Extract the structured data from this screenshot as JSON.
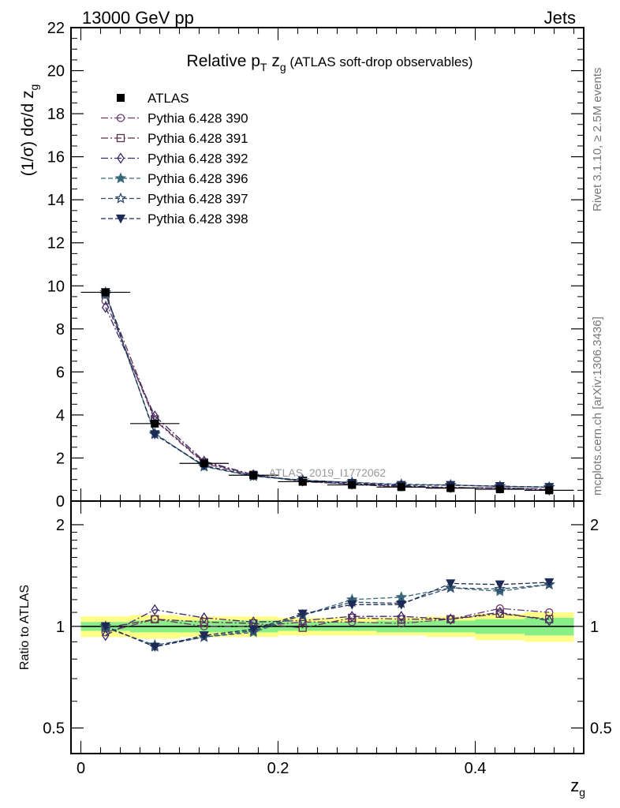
{
  "header": {
    "left": "13000 GeV pp",
    "right": "Jets"
  },
  "side_text": {
    "rivet": "Rivet 3.1.10, ≥ 2.5M events",
    "mcplots": "mcplots.cern.ch [arXiv:1306.3436]"
  },
  "chart_data": [
    {
      "type": "line",
      "title_parts": {
        "main": "Relative p",
        "sub": "T",
        "mid": " z",
        "sub2": "g",
        "tail": " (ATLAS soft-drop observables)"
      },
      "ylabel_parts": {
        "main": "(1/σ) dσ/d z",
        "sub": "g"
      },
      "watermark": "ATLAS_2019_I1772062",
      "xlim": [
        -0.01,
        0.51
      ],
      "ylim": [
        0,
        22
      ],
      "yticks": [
        0,
        2,
        4,
        6,
        8,
        10,
        12,
        14,
        16,
        18,
        20,
        22
      ],
      "ytick_labels": [
        "0",
        "2",
        "4",
        "6",
        "8",
        "10",
        "12",
        "14",
        "16",
        "18",
        "20",
        "22"
      ],
      "x": [
        0.025,
        0.075,
        0.125,
        0.175,
        0.225,
        0.275,
        0.325,
        0.375,
        0.425,
        0.475
      ],
      "data": {
        "name": "ATLAS",
        "values": [
          9.7,
          3.6,
          1.75,
          1.2,
          0.9,
          0.75,
          0.65,
          0.6,
          0.55,
          0.5
        ]
      },
      "series": [
        {
          "name": "Pythia 6.428 390",
          "color": "#6b3a6b",
          "marker": "circle-open",
          "dash": "dashdot",
          "values": [
            9.3,
            3.75,
            1.75,
            1.2,
            0.93,
            0.77,
            0.66,
            0.62,
            0.62,
            0.55
          ]
        },
        {
          "name": "Pythia 6.428 391",
          "color": "#5b2f4a",
          "marker": "square-open",
          "dash": "dashdot",
          "values": [
            9.6,
            3.8,
            1.8,
            1.22,
            0.9,
            0.8,
            0.68,
            0.63,
            0.6,
            0.53
          ]
        },
        {
          "name": "Pythia 6.428 392",
          "color": "#3d2a6b",
          "marker": "diamond-open",
          "dash": "dashdot",
          "values": [
            9.0,
            3.95,
            1.85,
            1.22,
            0.93,
            0.79,
            0.7,
            0.63,
            0.6,
            0.52
          ]
        },
        {
          "name": "Pythia 6.428 396",
          "color": "#3a6a7a",
          "marker": "star-filled",
          "dash": "dash",
          "values": [
            9.6,
            3.15,
            1.6,
            1.15,
            0.96,
            0.87,
            0.78,
            0.75,
            0.68,
            0.65
          ]
        },
        {
          "name": "Pythia 6.428 397",
          "color": "#2e4a6b",
          "marker": "star-open",
          "dash": "dash",
          "values": [
            9.7,
            3.1,
            1.62,
            1.17,
            0.97,
            0.86,
            0.75,
            0.74,
            0.69,
            0.64
          ]
        },
        {
          "name": "Pythia 6.428 398",
          "color": "#1d2a55",
          "marker": "triangle-down-filled",
          "dash": "dash",
          "values": [
            9.7,
            3.1,
            1.65,
            1.17,
            0.95,
            0.84,
            0.74,
            0.74,
            0.69,
            0.65
          ]
        }
      ]
    },
    {
      "type": "line",
      "ylabel": "Ratio to ATLAS",
      "xlabel_parts": {
        "main": "z",
        "sub": "g"
      },
      "xlim": [
        -0.01,
        0.51
      ],
      "ylim": [
        0.42,
        2.35
      ],
      "yscale": "log",
      "yticks": [
        0.5,
        1,
        2
      ],
      "ytick_labels": [
        "0.5",
        "1",
        "2"
      ],
      "xticks": [
        0,
        0.2,
        0.4
      ],
      "xtick_labels": [
        "0",
        "0.2",
        "0.4"
      ],
      "x": [
        0.025,
        0.075,
        0.125,
        0.175,
        0.225,
        0.275,
        0.325,
        0.375,
        0.425,
        0.475
      ],
      "band_yellow": [
        0.07,
        0.08,
        0.07,
        0.07,
        0.06,
        0.06,
        0.06,
        0.07,
        0.09,
        0.1
      ],
      "band_green": [
        0.03,
        0.04,
        0.04,
        0.04,
        0.03,
        0.03,
        0.04,
        0.04,
        0.05,
        0.06
      ],
      "series": [
        {
          "name": "Pythia 6.428 390",
          "color": "#6b3a6b",
          "marker": "circle-open",
          "dash": "dashdot",
          "values": [
            0.96,
            1.05,
            1.0,
            1.0,
            1.03,
            1.03,
            1.02,
            1.05,
            1.13,
            1.1
          ]
        },
        {
          "name": "Pythia 6.428 391",
          "color": "#5b2f4a",
          "marker": "square-open",
          "dash": "dashdot",
          "values": [
            0.99,
            1.05,
            1.03,
            1.02,
            0.99,
            1.06,
            1.05,
            1.05,
            1.09,
            1.05
          ]
        },
        {
          "name": "Pythia 6.428 392",
          "color": "#3d2a6b",
          "marker": "diamond-open",
          "dash": "dashdot",
          "values": [
            0.94,
            1.12,
            1.06,
            1.03,
            1.04,
            1.07,
            1.07,
            1.05,
            1.1,
            1.04
          ]
        },
        {
          "name": "Pythia 6.428 396",
          "color": "#3a6a7a",
          "marker": "star-filled",
          "dash": "dash",
          "values": [
            0.99,
            0.88,
            0.93,
            0.96,
            1.08,
            1.2,
            1.22,
            1.3,
            1.27,
            1.33
          ]
        },
        {
          "name": "Pythia 6.428 397",
          "color": "#2e4a6b",
          "marker": "star-open",
          "dash": "dash",
          "values": [
            1.0,
            0.87,
            0.93,
            0.97,
            1.08,
            1.18,
            1.17,
            1.3,
            1.29,
            1.33
          ]
        },
        {
          "name": "Pythia 6.428 398",
          "color": "#1d2a55",
          "marker": "triangle-down-filled",
          "dash": "dash",
          "values": [
            1.0,
            0.87,
            0.94,
            0.98,
            1.09,
            1.16,
            1.16,
            1.34,
            1.33,
            1.35
          ]
        }
      ]
    }
  ]
}
